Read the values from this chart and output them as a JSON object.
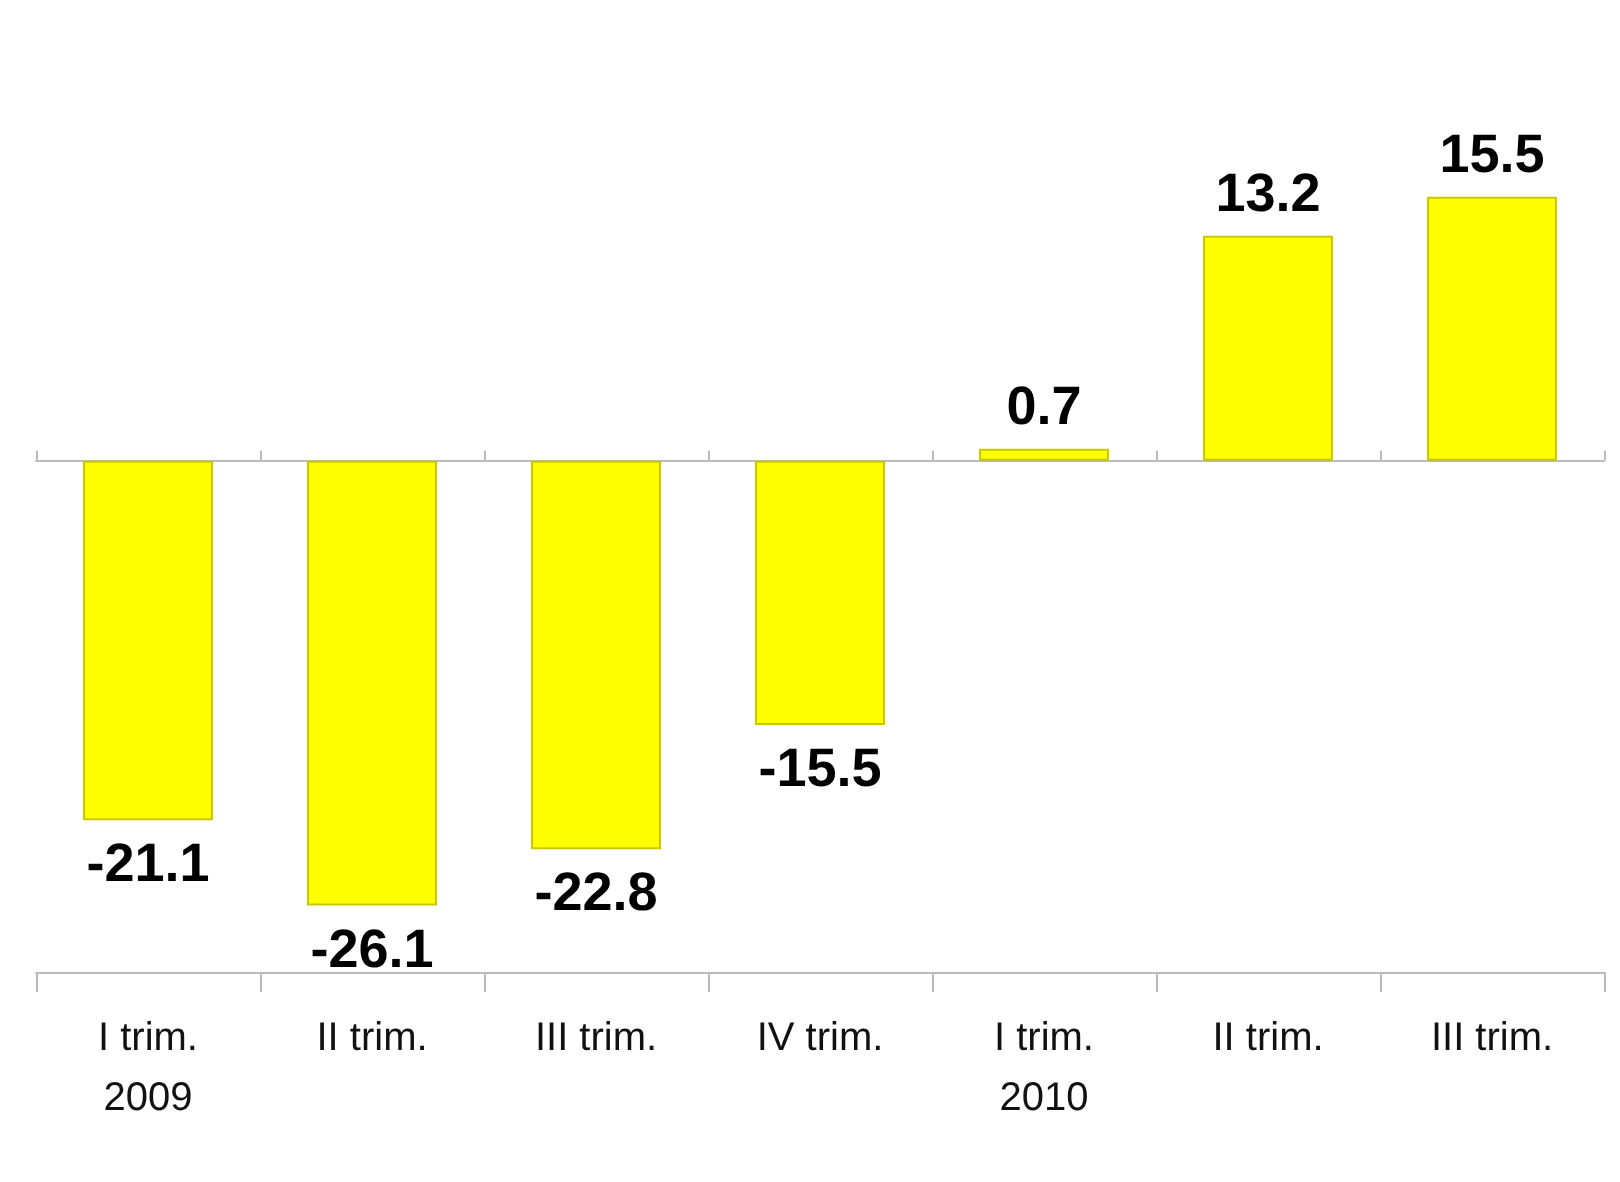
{
  "chart_data": {
    "type": "bar",
    "categories": [
      "I trim.\n2009",
      "II trim.",
      "III trim.",
      "IV trim.",
      "I trim.\n2010",
      "II trim.",
      "III trim."
    ],
    "values": [
      -21.1,
      -26.1,
      -22.8,
      -15.5,
      0.7,
      13.2,
      15.5
    ],
    "color": "#ffff00",
    "data_labels": true
  }
}
